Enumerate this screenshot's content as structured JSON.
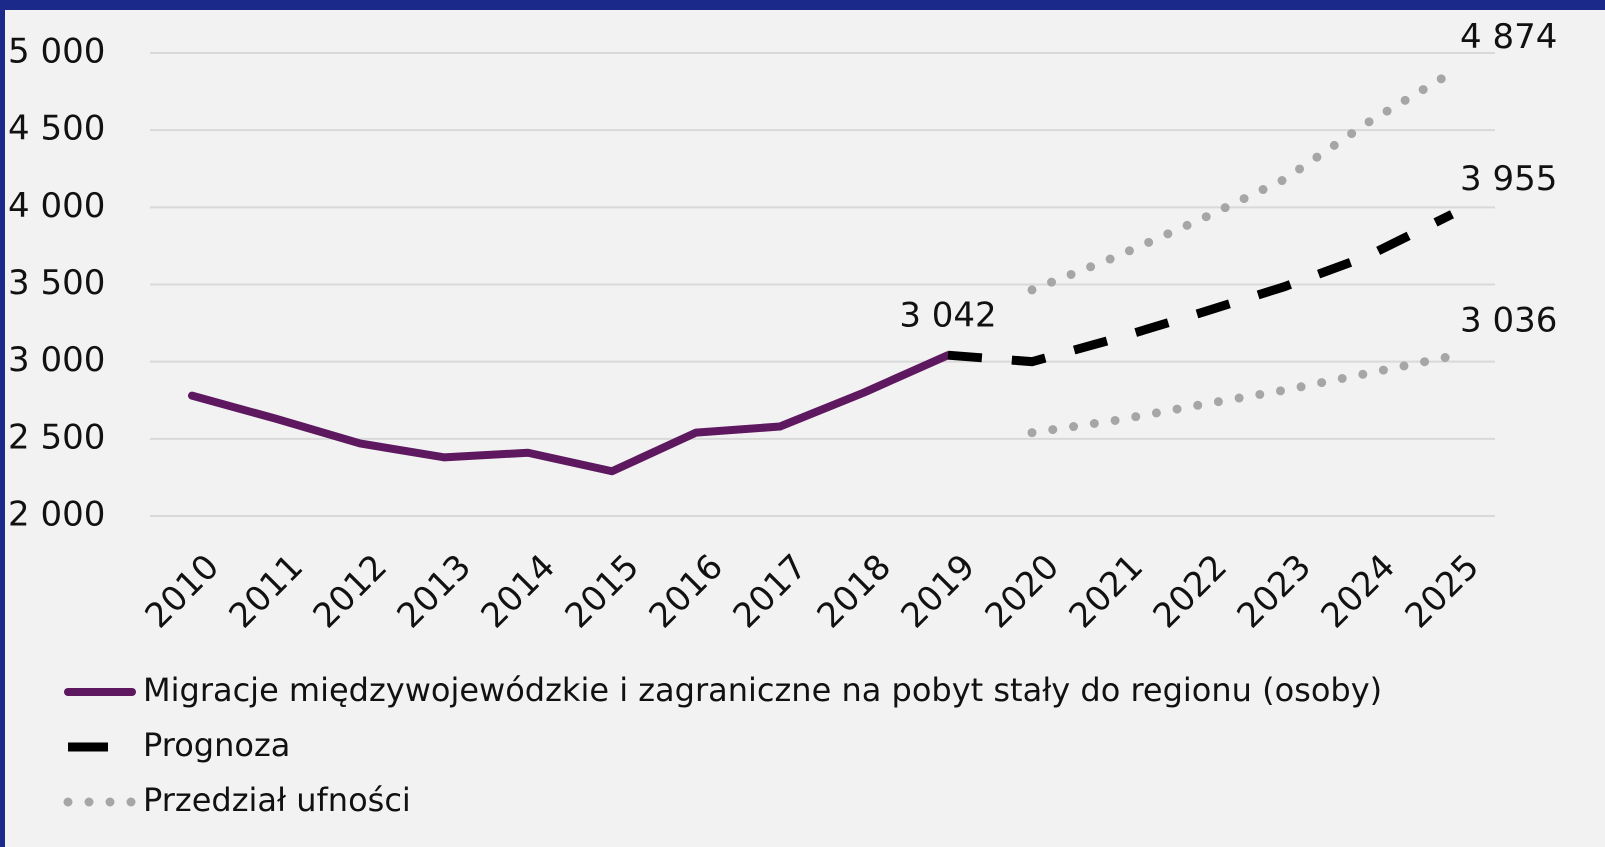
{
  "chart_data": {
    "type": "line",
    "categories": [
      "2010",
      "2011",
      "2012",
      "2013",
      "2014",
      "2015",
      "2016",
      "2017",
      "2018",
      "2019",
      "2020",
      "2021",
      "2022",
      "2023",
      "2024",
      "2025"
    ],
    "ylim": [
      2000,
      5000
    ],
    "yticks": [
      {
        "value": 2000,
        "label": "2 000"
      },
      {
        "value": 2500,
        "label": "2 500"
      },
      {
        "value": 3000,
        "label": "3 000"
      },
      {
        "value": 3500,
        "label": "3 500"
      },
      {
        "value": 4000,
        "label": "4 000"
      },
      {
        "value": 4500,
        "label": "4 500"
      },
      {
        "value": 5000,
        "label": "5 000"
      }
    ],
    "grid": true,
    "legend": "bottom",
    "series": [
      {
        "name": "Migracje międzywojewódzkie i zagraniczne na pobyt stały do regionu (osoby)",
        "color": "#5e1860",
        "style": "solid",
        "values": [
          2780,
          2630,
          2470,
          2380,
          2410,
          2290,
          2540,
          2580,
          2800,
          3042,
          null,
          null,
          null,
          null,
          null,
          null
        ],
        "value_labels": [
          null,
          null,
          null,
          null,
          null,
          null,
          null,
          null,
          null,
          "3 042",
          null,
          null,
          null,
          null,
          null,
          null
        ]
      },
      {
        "name": "Prognoza",
        "color": "#000000",
        "style": "dashed",
        "values": [
          null,
          null,
          null,
          null,
          null,
          null,
          null,
          null,
          null,
          3042,
          3000,
          3150,
          3315,
          3485,
          3685,
          3955
        ],
        "value_labels": [
          null,
          null,
          null,
          null,
          null,
          null,
          null,
          null,
          null,
          null,
          null,
          null,
          null,
          null,
          null,
          "3 955"
        ]
      },
      {
        "name": "Przedział ufności",
        "color": "#a6a6a6",
        "style": "dotted",
        "values": [
          null,
          null,
          null,
          null,
          null,
          null,
          null,
          null,
          null,
          null,
          3465,
          3680,
          3920,
          4180,
          4550,
          4874
        ],
        "value_labels": [
          null,
          null,
          null,
          null,
          null,
          null,
          null,
          null,
          null,
          null,
          null,
          null,
          null,
          null,
          null,
          "4 874"
        ],
        "lower": [
          null,
          null,
          null,
          null,
          null,
          null,
          null,
          null,
          null,
          null,
          2540,
          2620,
          2720,
          2815,
          2925,
          3036
        ],
        "lower_value_labels": [
          null,
          null,
          null,
          null,
          null,
          null,
          null,
          null,
          null,
          null,
          null,
          null,
          null,
          null,
          null,
          "3 036"
        ]
      }
    ]
  }
}
